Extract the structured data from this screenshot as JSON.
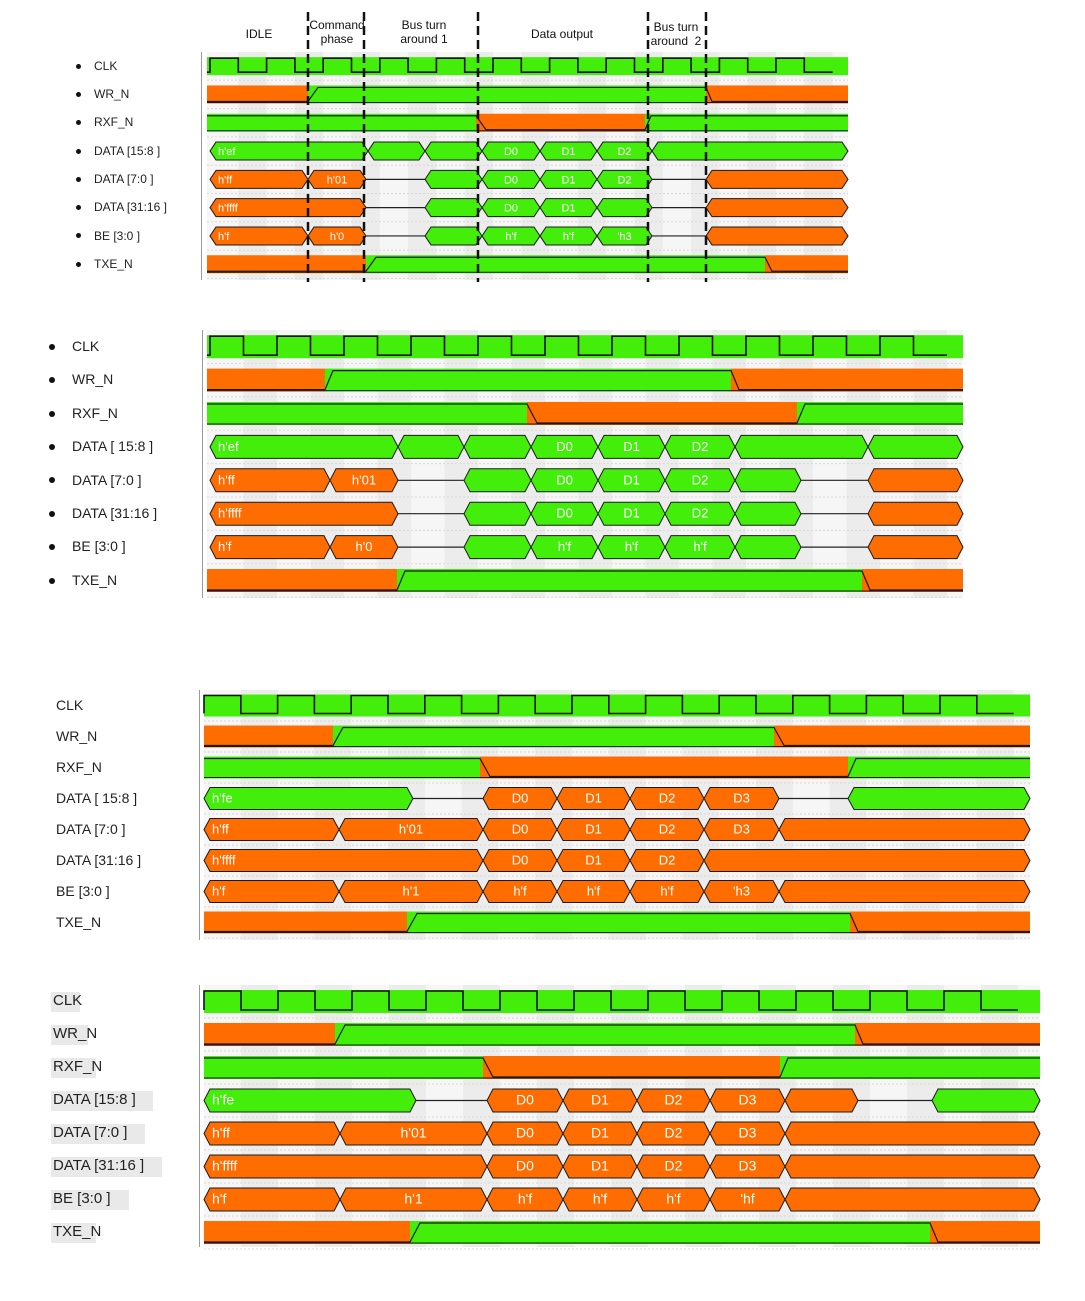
{
  "colors": {
    "high": "#43ee0a",
    "low": "#ff6c00",
    "text": "#1a1a1a"
  },
  "phases": [
    {
      "label": "IDLE"
    },
    {
      "label": "Command\nphase"
    },
    {
      "label": "Bus turn\naround 1"
    },
    {
      "label": "Data output"
    },
    {
      "label": "Bus turn\naround  2"
    }
  ],
  "diagrams": [
    {
      "signals": [
        {
          "name": "CLK"
        },
        {
          "name": "WR_N"
        },
        {
          "name": "RXF_N"
        },
        {
          "name": "DATA [15:8 ]",
          "values": [
            "h'ef",
            "D0",
            "D1",
            "D2"
          ]
        },
        {
          "name": "DATA [7:0 ]",
          "values": [
            "h'ff",
            "h'01",
            "D0",
            "D1",
            "D2"
          ]
        },
        {
          "name": "DATA [31:16 ]",
          "values": [
            "h'ffff",
            "D0",
            "D1"
          ]
        },
        {
          "name": "BE [3:0 ]",
          "values": [
            "h'f",
            "h'0",
            "h'f",
            "h'f",
            "'h3"
          ]
        },
        {
          "name": "TXE_N"
        }
      ]
    },
    {
      "signals": [
        {
          "name": "CLK"
        },
        {
          "name": "WR_N"
        },
        {
          "name": "RXF_N"
        },
        {
          "name": "DATA [ 15:8 ]",
          "values": [
            "h'ef",
            "D0",
            "D1",
            "D2"
          ]
        },
        {
          "name": "DATA [7:0 ]",
          "values": [
            "h'ff",
            "h'01",
            "D0",
            "D1",
            "D2"
          ]
        },
        {
          "name": "DATA [31:16 ]",
          "values": [
            "h'ffff",
            "D0",
            "D1",
            "D2"
          ]
        },
        {
          "name": "BE [3:0 ]",
          "values": [
            "h'f",
            "h'0",
            "h'f",
            "h'f",
            "h'f"
          ]
        },
        {
          "name": "TXE_N"
        }
      ]
    },
    {
      "signals": [
        {
          "name": "CLK"
        },
        {
          "name": "WR_N"
        },
        {
          "name": "RXF_N"
        },
        {
          "name": "DATA [ 15:8 ]",
          "values": [
            "h'fe",
            "D0",
            "D1",
            "D2",
            "D3"
          ]
        },
        {
          "name": "DATA [7:0 ]",
          "values": [
            "h'ff",
            "h'01",
            "D0",
            "D1",
            "D2",
            "D3"
          ]
        },
        {
          "name": "DATA [31:16 ]",
          "values": [
            "h'ffff",
            "D0",
            "D1",
            "D2"
          ]
        },
        {
          "name": "BE [3:0 ]",
          "values": [
            "h'f",
            "h'1",
            "h'f",
            "h'f",
            "h'f",
            "'h3"
          ]
        },
        {
          "name": "TXE_N"
        }
      ]
    },
    {
      "signals": [
        {
          "name": "CLK"
        },
        {
          "name": "WR_N"
        },
        {
          "name": "RXF_N"
        },
        {
          "name": "DATA [15:8 ]",
          "values": [
            "h'fe",
            "D0",
            "D1",
            "D2",
            "D3"
          ]
        },
        {
          "name": "DATA [7:0 ]",
          "values": [
            "h'ff",
            "h'01",
            "D0",
            "D1",
            "D2",
            "D3"
          ]
        },
        {
          "name": "DATA [31:16 ]",
          "values": [
            "h'ffff",
            "D0",
            "D1",
            "D2",
            "D3"
          ]
        },
        {
          "name": "BE [3:0 ]",
          "values": [
            "h'f",
            "h'1",
            "h'f",
            "h'f",
            "h'f",
            "'hf"
          ]
        },
        {
          "name": "TXE_N"
        }
      ]
    }
  ]
}
